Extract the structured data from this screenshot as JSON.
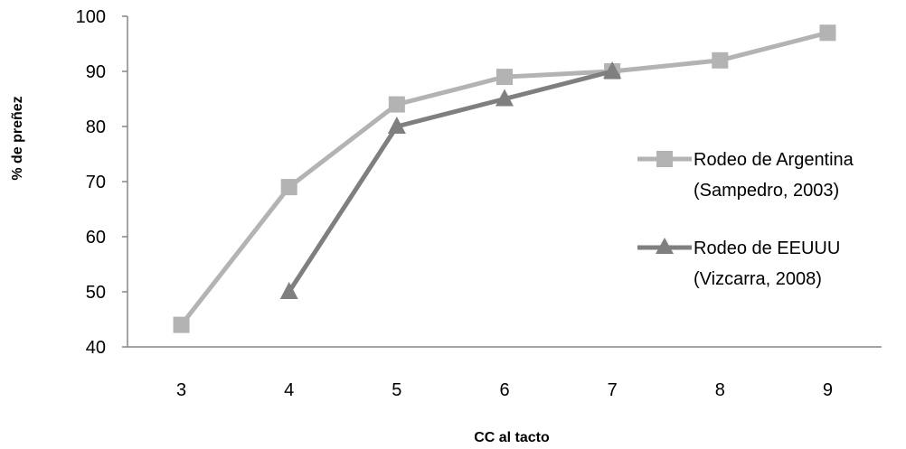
{
  "chart_data": {
    "type": "line",
    "xlabel": "CC al tacto",
    "ylabel": "% de preñez",
    "x": [
      3,
      4,
      5,
      6,
      7,
      8,
      9
    ],
    "ylim": [
      40,
      100
    ],
    "yticks": [
      40,
      50,
      60,
      70,
      80,
      90,
      100
    ],
    "grid": false,
    "legend_position": "right",
    "series": [
      {
        "name_line1": "Rodeo de Argentina",
        "name_line2": "(Sampedro, 2003)",
        "marker": "square",
        "color": "#b3b3b3",
        "x": [
          3,
          4,
          5,
          6,
          7,
          8,
          9
        ],
        "values": [
          44,
          69,
          84,
          89,
          90,
          92,
          97
        ]
      },
      {
        "name_line1": "Rodeo de EEUUU",
        "name_line2": "(Vizcarra, 2008)",
        "marker": "triangle",
        "color": "#7f7f7f",
        "x": [
          4,
          5,
          6,
          7
        ],
        "values": [
          50,
          80,
          85,
          90
        ]
      }
    ]
  }
}
